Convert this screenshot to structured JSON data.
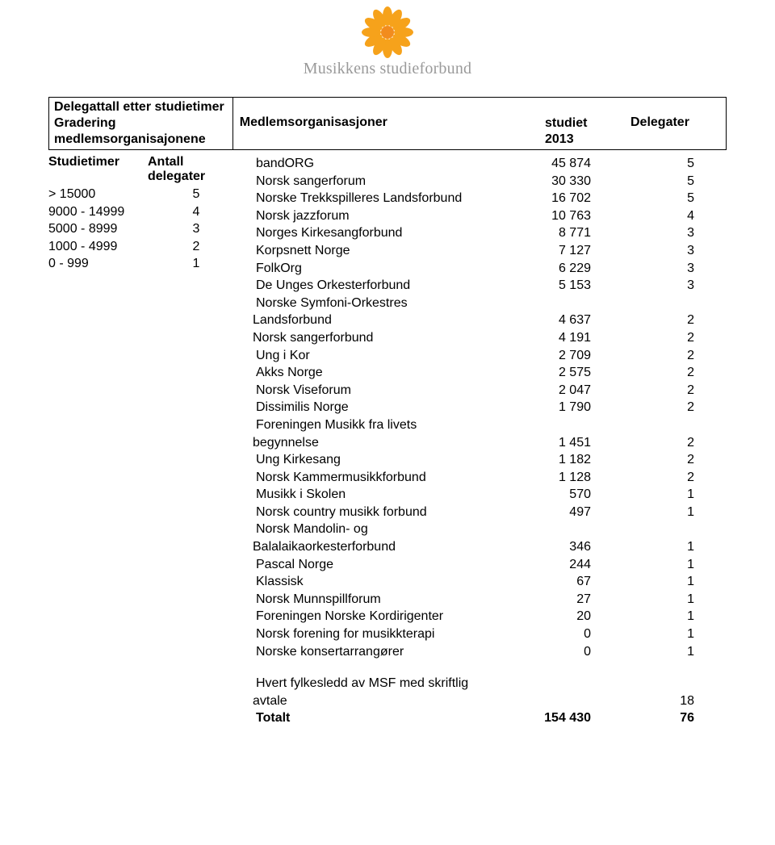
{
  "logo": {
    "brand_text": "Musikkens studieforbund",
    "petal_color": "#f6a21b",
    "center_color": "#f28c1e",
    "brand_color": "#9a9a9a"
  },
  "box_left": {
    "line1": "Delegattall etter studietimer",
    "line2_a": "Gradering",
    "line2_b": "medlemsorganisajonene"
  },
  "box_right": {
    "col_org": "Medlemsorganisasjoner",
    "col_studiet_l1": "studiet",
    "col_studiet_l2": "2013",
    "col_delegater": "Delegater"
  },
  "left_table": {
    "h1": "Studietimer",
    "h2": "Antall delegater",
    "rows": [
      {
        "range": "> 15000",
        "val": "5"
      },
      {
        "range": "9000 - 14999",
        "val": "4"
      },
      {
        "range": "5000 - 8999",
        "val": "3"
      },
      {
        "range": "1000 - 4999",
        "val": "2"
      },
      {
        "range": "0 - 999",
        "val": "1"
      }
    ]
  },
  "rows": [
    {
      "org": "bandORG",
      "num": "45 874",
      "del": "5"
    },
    {
      "org": "Norsk sangerforum",
      "num": "30 330",
      "del": "5"
    },
    {
      "org": "Norske Trekkspilleres Landsforbund",
      "num": "16 702",
      "del": "5"
    },
    {
      "org": "Norsk jazzforum",
      "num": "10 763",
      "del": "4"
    },
    {
      "org": "Norges Kirkesangforbund",
      "num": "8 771",
      "del": "3"
    },
    {
      "org": "Korpsnett Norge",
      "num": "7 127",
      "del": "3"
    },
    {
      "org": "FolkOrg",
      "num": "6 229",
      "del": "3"
    },
    {
      "org": "De Unges Orkesterforbund",
      "num": "5 153",
      "del": "3"
    },
    {
      "org": "Norske Symfoni-Orkestres",
      "num": "",
      "del": ""
    },
    {
      "org": "Landsforbund",
      "num": "4 637",
      "del": "2",
      "noindent": true
    },
    {
      "org": "Norsk sangerforbund",
      "num": "4 191",
      "del": "2",
      "noindent": true
    },
    {
      "org": "Ung i Kor",
      "num": "2 709",
      "del": "2"
    },
    {
      "org": "Akks Norge",
      "num": "2 575",
      "del": "2"
    },
    {
      "org": "Norsk Viseforum",
      "num": "2 047",
      "del": "2"
    },
    {
      "org": "Dissimilis Norge",
      "num": "1 790",
      "del": "2"
    },
    {
      "org": "Foreningen Musikk fra livets",
      "num": "",
      "del": ""
    },
    {
      "org": "begynnelse",
      "num": "1 451",
      "del": "2",
      "noindent": true
    },
    {
      "org": "Ung Kirkesang",
      "num": "1 182",
      "del": "2"
    },
    {
      "org": "Norsk Kammermusikkforbund",
      "num": "1 128",
      "del": "2"
    },
    {
      "org": "Musikk i Skolen",
      "num": "570",
      "del": "1"
    },
    {
      "org": "Norsk country musikk forbund",
      "num": "497",
      "del": "1"
    },
    {
      "org": "Norsk Mandolin- og",
      "num": "",
      "del": ""
    },
    {
      "org": "Balalaikaorkesterforbund",
      "num": "346",
      "del": "1",
      "noindent": true
    },
    {
      "org": "Pascal Norge",
      "num": "244",
      "del": "1"
    },
    {
      "org": "Klassisk",
      "num": "67",
      "del": "1"
    },
    {
      "org": "Norsk Munnspillforum",
      "num": "27",
      "del": "1"
    },
    {
      "org": "Foreningen Norske Kordirigenter",
      "num": "20",
      "del": "1"
    },
    {
      "org": "Norsk forening for musikkterapi",
      "num": "0",
      "del": "1"
    },
    {
      "org": "Norske konsertarrangører",
      "num": "0",
      "del": "1"
    }
  ],
  "footer": {
    "line1": "Hvert fylkesledd av MSF med skriftlig",
    "line2_org": "avtale",
    "line2_del": "18",
    "total_label": "Totalt",
    "total_num": "154 430",
    "total_del": "76"
  }
}
